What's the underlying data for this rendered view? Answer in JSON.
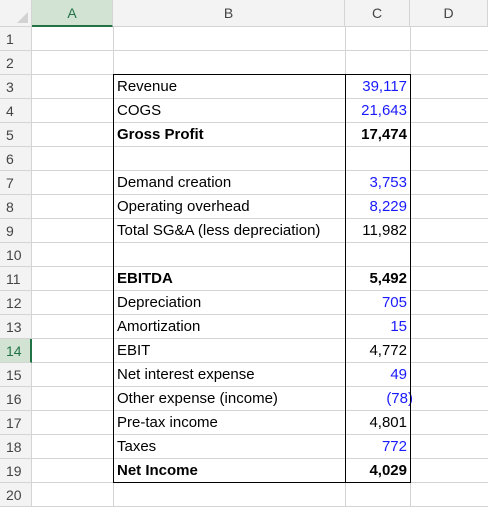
{
  "columns": [
    {
      "id": "A",
      "label": "A",
      "selected": true
    },
    {
      "id": "B",
      "label": "B",
      "selected": false
    },
    {
      "id": "C",
      "label": "C",
      "selected": false
    },
    {
      "id": "D",
      "label": "D",
      "selected": false
    }
  ],
  "selected_row": 14,
  "rows": [
    {
      "n": "1",
      "label": "",
      "value": ""
    },
    {
      "n": "2",
      "label": "",
      "value": ""
    },
    {
      "n": "3",
      "label": "Revenue",
      "value": "39,117",
      "bold": false,
      "input": true
    },
    {
      "n": "4",
      "label": "COGS",
      "value": "21,643",
      "bold": false,
      "input": true
    },
    {
      "n": "5",
      "label": "Gross Profit",
      "value": "17,474",
      "bold": true,
      "input": false
    },
    {
      "n": "6",
      "label": "",
      "value": ""
    },
    {
      "n": "7",
      "label": "Demand creation",
      "value": "3,753",
      "bold": false,
      "input": true
    },
    {
      "n": "8",
      "label": "Operating overhead",
      "value": "8,229",
      "bold": false,
      "input": true
    },
    {
      "n": "9",
      "label": "Total SG&A (less depreciation)",
      "value": "11,982",
      "bold": false,
      "input": false
    },
    {
      "n": "10",
      "label": "",
      "value": ""
    },
    {
      "n": "11",
      "label": "EBITDA",
      "value": "5,492",
      "bold": true,
      "input": false
    },
    {
      "n": "12",
      "label": "Depreciation",
      "value": "705",
      "bold": false,
      "input": true
    },
    {
      "n": "13",
      "label": "Amortization",
      "value": "15",
      "bold": false,
      "input": true
    },
    {
      "n": "14",
      "label": "EBIT",
      "value": "4,772",
      "bold": false,
      "input": false
    },
    {
      "n": "15",
      "label": "Net interest expense",
      "value": "49",
      "bold": false,
      "input": true
    },
    {
      "n": "16",
      "label": "Other expense (income)",
      "value": "(78)",
      "bold": false,
      "input": true
    },
    {
      "n": "17",
      "label": "Pre-tax income",
      "value": "4,801",
      "bold": false,
      "input": false
    },
    {
      "n": "18",
      "label": "Taxes",
      "value": "772",
      "bold": false,
      "input": true
    },
    {
      "n": "19",
      "label": "Net Income",
      "value": "4,029",
      "bold": true,
      "input": false
    },
    {
      "n": "20",
      "label": "",
      "value": ""
    }
  ],
  "colors": {
    "input_value": "#1a1aff",
    "selected_header_bg": "#d3e3d3",
    "selected_header_fg": "#217346"
  }
}
